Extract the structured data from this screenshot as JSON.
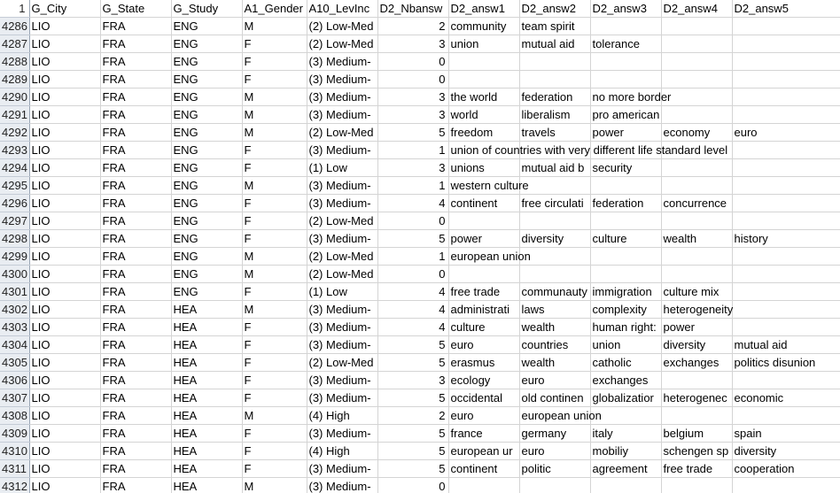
{
  "header": {
    "row": "1",
    "cells": [
      "G_City",
      "G_State",
      "G_Study",
      "A1_Gender",
      "A10_LevInc",
      "D2_Nbansw",
      "D2_answ1",
      "D2_answ2",
      "D2_answ3",
      "D2_answ4",
      "D2_answ5"
    ]
  },
  "rows": [
    {
      "n": "4286",
      "city": "LIO",
      "state": "FRA",
      "study": "ENG",
      "gender": "M",
      "inc": "(2) Low-Med",
      "nb": "2",
      "a": [
        "community",
        "team spirit",
        "",
        "",
        ""
      ]
    },
    {
      "n": "4287",
      "city": "LIO",
      "state": "FRA",
      "study": "ENG",
      "gender": "F",
      "inc": "(2) Low-Med",
      "nb": "3",
      "a": [
        "union",
        "mutual aid",
        "tolerance",
        "",
        ""
      ]
    },
    {
      "n": "4288",
      "city": "LIO",
      "state": "FRA",
      "study": "ENG",
      "gender": "F",
      "inc": "(3) Medium-",
      "nb": "0",
      "a": [
        "",
        "",
        "",
        "",
        ""
      ]
    },
    {
      "n": "4289",
      "city": "LIO",
      "state": "FRA",
      "study": "ENG",
      "gender": "F",
      "inc": "(3) Medium-",
      "nb": "0",
      "a": [
        "",
        "",
        "",
        "",
        ""
      ]
    },
    {
      "n": "4290",
      "city": "LIO",
      "state": "FRA",
      "study": "ENG",
      "gender": "M",
      "inc": "(3) Medium-",
      "nb": "3",
      "a": [
        "the world",
        "federation",
        "no more border",
        "",
        ""
      ]
    },
    {
      "n": "4291",
      "city": "LIO",
      "state": "FRA",
      "study": "ENG",
      "gender": "M",
      "inc": "(3) Medium-",
      "nb": "3",
      "a": [
        "world",
        "liberalism",
        "pro american",
        "",
        ""
      ]
    },
    {
      "n": "4292",
      "city": "LIO",
      "state": "FRA",
      "study": "ENG",
      "gender": "M",
      "inc": "(2) Low-Med",
      "nb": "5",
      "a": [
        "freedom",
        "travels",
        "power",
        "economy",
        "euro"
      ]
    },
    {
      "n": "4293",
      "city": "LIO",
      "state": "FRA",
      "study": "ENG",
      "gender": "F",
      "inc": "(3) Medium-",
      "nb": "1",
      "a": [
        "union of countries with very different life standard level",
        "",
        "",
        "",
        ""
      ]
    },
    {
      "n": "4294",
      "city": "LIO",
      "state": "FRA",
      "study": "ENG",
      "gender": "F",
      "inc": "(1) Low",
      "nb": "3",
      "a": [
        "unions",
        "mutual aid b",
        "security",
        "",
        ""
      ]
    },
    {
      "n": "4295",
      "city": "LIO",
      "state": "FRA",
      "study": "ENG",
      "gender": "M",
      "inc": "(3) Medium-",
      "nb": "1",
      "a": [
        "western culture",
        "",
        "",
        "",
        ""
      ]
    },
    {
      "n": "4296",
      "city": "LIO",
      "state": "FRA",
      "study": "ENG",
      "gender": "F",
      "inc": "(3) Medium-",
      "nb": "4",
      "a": [
        "continent",
        "free circulati",
        "federation",
        "concurrence",
        ""
      ]
    },
    {
      "n": "4297",
      "city": "LIO",
      "state": "FRA",
      "study": "ENG",
      "gender": "F",
      "inc": "(2) Low-Med",
      "nb": "0",
      "a": [
        "",
        "",
        "",
        "",
        ""
      ]
    },
    {
      "n": "4298",
      "city": "LIO",
      "state": "FRA",
      "study": "ENG",
      "gender": "F",
      "inc": "(3) Medium-",
      "nb": "5",
      "a": [
        "power",
        "diversity",
        "culture",
        "wealth",
        "history"
      ]
    },
    {
      "n": "4299",
      "city": "LIO",
      "state": "FRA",
      "study": "ENG",
      "gender": "M",
      "inc": "(2) Low-Med",
      "nb": "1",
      "a": [
        "european union",
        "",
        "",
        "",
        ""
      ]
    },
    {
      "n": "4300",
      "city": "LIO",
      "state": "FRA",
      "study": "ENG",
      "gender": "M",
      "inc": "(2) Low-Med",
      "nb": "0",
      "a": [
        "",
        "",
        "",
        "",
        ""
      ]
    },
    {
      "n": "4301",
      "city": "LIO",
      "state": "FRA",
      "study": "ENG",
      "gender": "F",
      "inc": "(1) Low",
      "nb": "4",
      "a": [
        "free trade",
        "communauty",
        "immigration",
        "culture mix",
        ""
      ]
    },
    {
      "n": "4302",
      "city": "LIO",
      "state": "FRA",
      "study": "HEA",
      "gender": "M",
      "inc": "(3) Medium-",
      "nb": "4",
      "a": [
        "administrati",
        "laws",
        "complexity",
        "heterogeneity",
        ""
      ]
    },
    {
      "n": "4303",
      "city": "LIO",
      "state": "FRA",
      "study": "HEA",
      "gender": "F",
      "inc": "(3) Medium-",
      "nb": "4",
      "a": [
        "culture",
        "wealth",
        "human right:",
        "power",
        ""
      ]
    },
    {
      "n": "4304",
      "city": "LIO",
      "state": "FRA",
      "study": "HEA",
      "gender": "F",
      "inc": "(3) Medium-",
      "nb": "5",
      "a": [
        "euro",
        "countries",
        "union",
        "diversity",
        "mutual aid"
      ]
    },
    {
      "n": "4305",
      "city": "LIO",
      "state": "FRA",
      "study": "HEA",
      "gender": "F",
      "inc": "(2) Low-Med",
      "nb": "5",
      "a": [
        "erasmus",
        "wealth",
        "catholic",
        "exchanges",
        "politics disunion"
      ]
    },
    {
      "n": "4306",
      "city": "LIO",
      "state": "FRA",
      "study": "HEA",
      "gender": "F",
      "inc": "(3) Medium-",
      "nb": "3",
      "a": [
        "ecology",
        "euro",
        "exchanges",
        "",
        ""
      ]
    },
    {
      "n": "4307",
      "city": "LIO",
      "state": "FRA",
      "study": "HEA",
      "gender": "F",
      "inc": "(3) Medium-",
      "nb": "5",
      "a": [
        "occidental",
        "old continen",
        "globalizatior",
        "heterogenec",
        "economic"
      ]
    },
    {
      "n": "4308",
      "city": "LIO",
      "state": "FRA",
      "study": "HEA",
      "gender": "M",
      "inc": "(4) High",
      "nb": "2",
      "a": [
        "euro",
        "european union",
        "",
        "",
        ""
      ]
    },
    {
      "n": "4309",
      "city": "LIO",
      "state": "FRA",
      "study": "HEA",
      "gender": "F",
      "inc": "(3) Medium-",
      "nb": "5",
      "a": [
        "france",
        "germany",
        "italy",
        "belgium",
        "spain"
      ]
    },
    {
      "n": "4310",
      "city": "LIO",
      "state": "FRA",
      "study": "HEA",
      "gender": "F",
      "inc": "(4) High",
      "nb": "5",
      "a": [
        "european ur",
        "euro",
        "mobiliy",
        "schengen sp",
        "diversity"
      ]
    },
    {
      "n": "4311",
      "city": "LIO",
      "state": "FRA",
      "study": "HEA",
      "gender": "F",
      "inc": "(3) Medium-",
      "nb": "5",
      "a": [
        "continent",
        "politic",
        "agreement",
        "free trade",
        "cooperation"
      ]
    },
    {
      "n": "4312",
      "city": "LIO",
      "state": "FRA",
      "study": "HEA",
      "gender": "M",
      "inc": "(3) Medium-",
      "nb": "0",
      "a": [
        "",
        "",
        "",
        "",
        ""
      ]
    }
  ]
}
